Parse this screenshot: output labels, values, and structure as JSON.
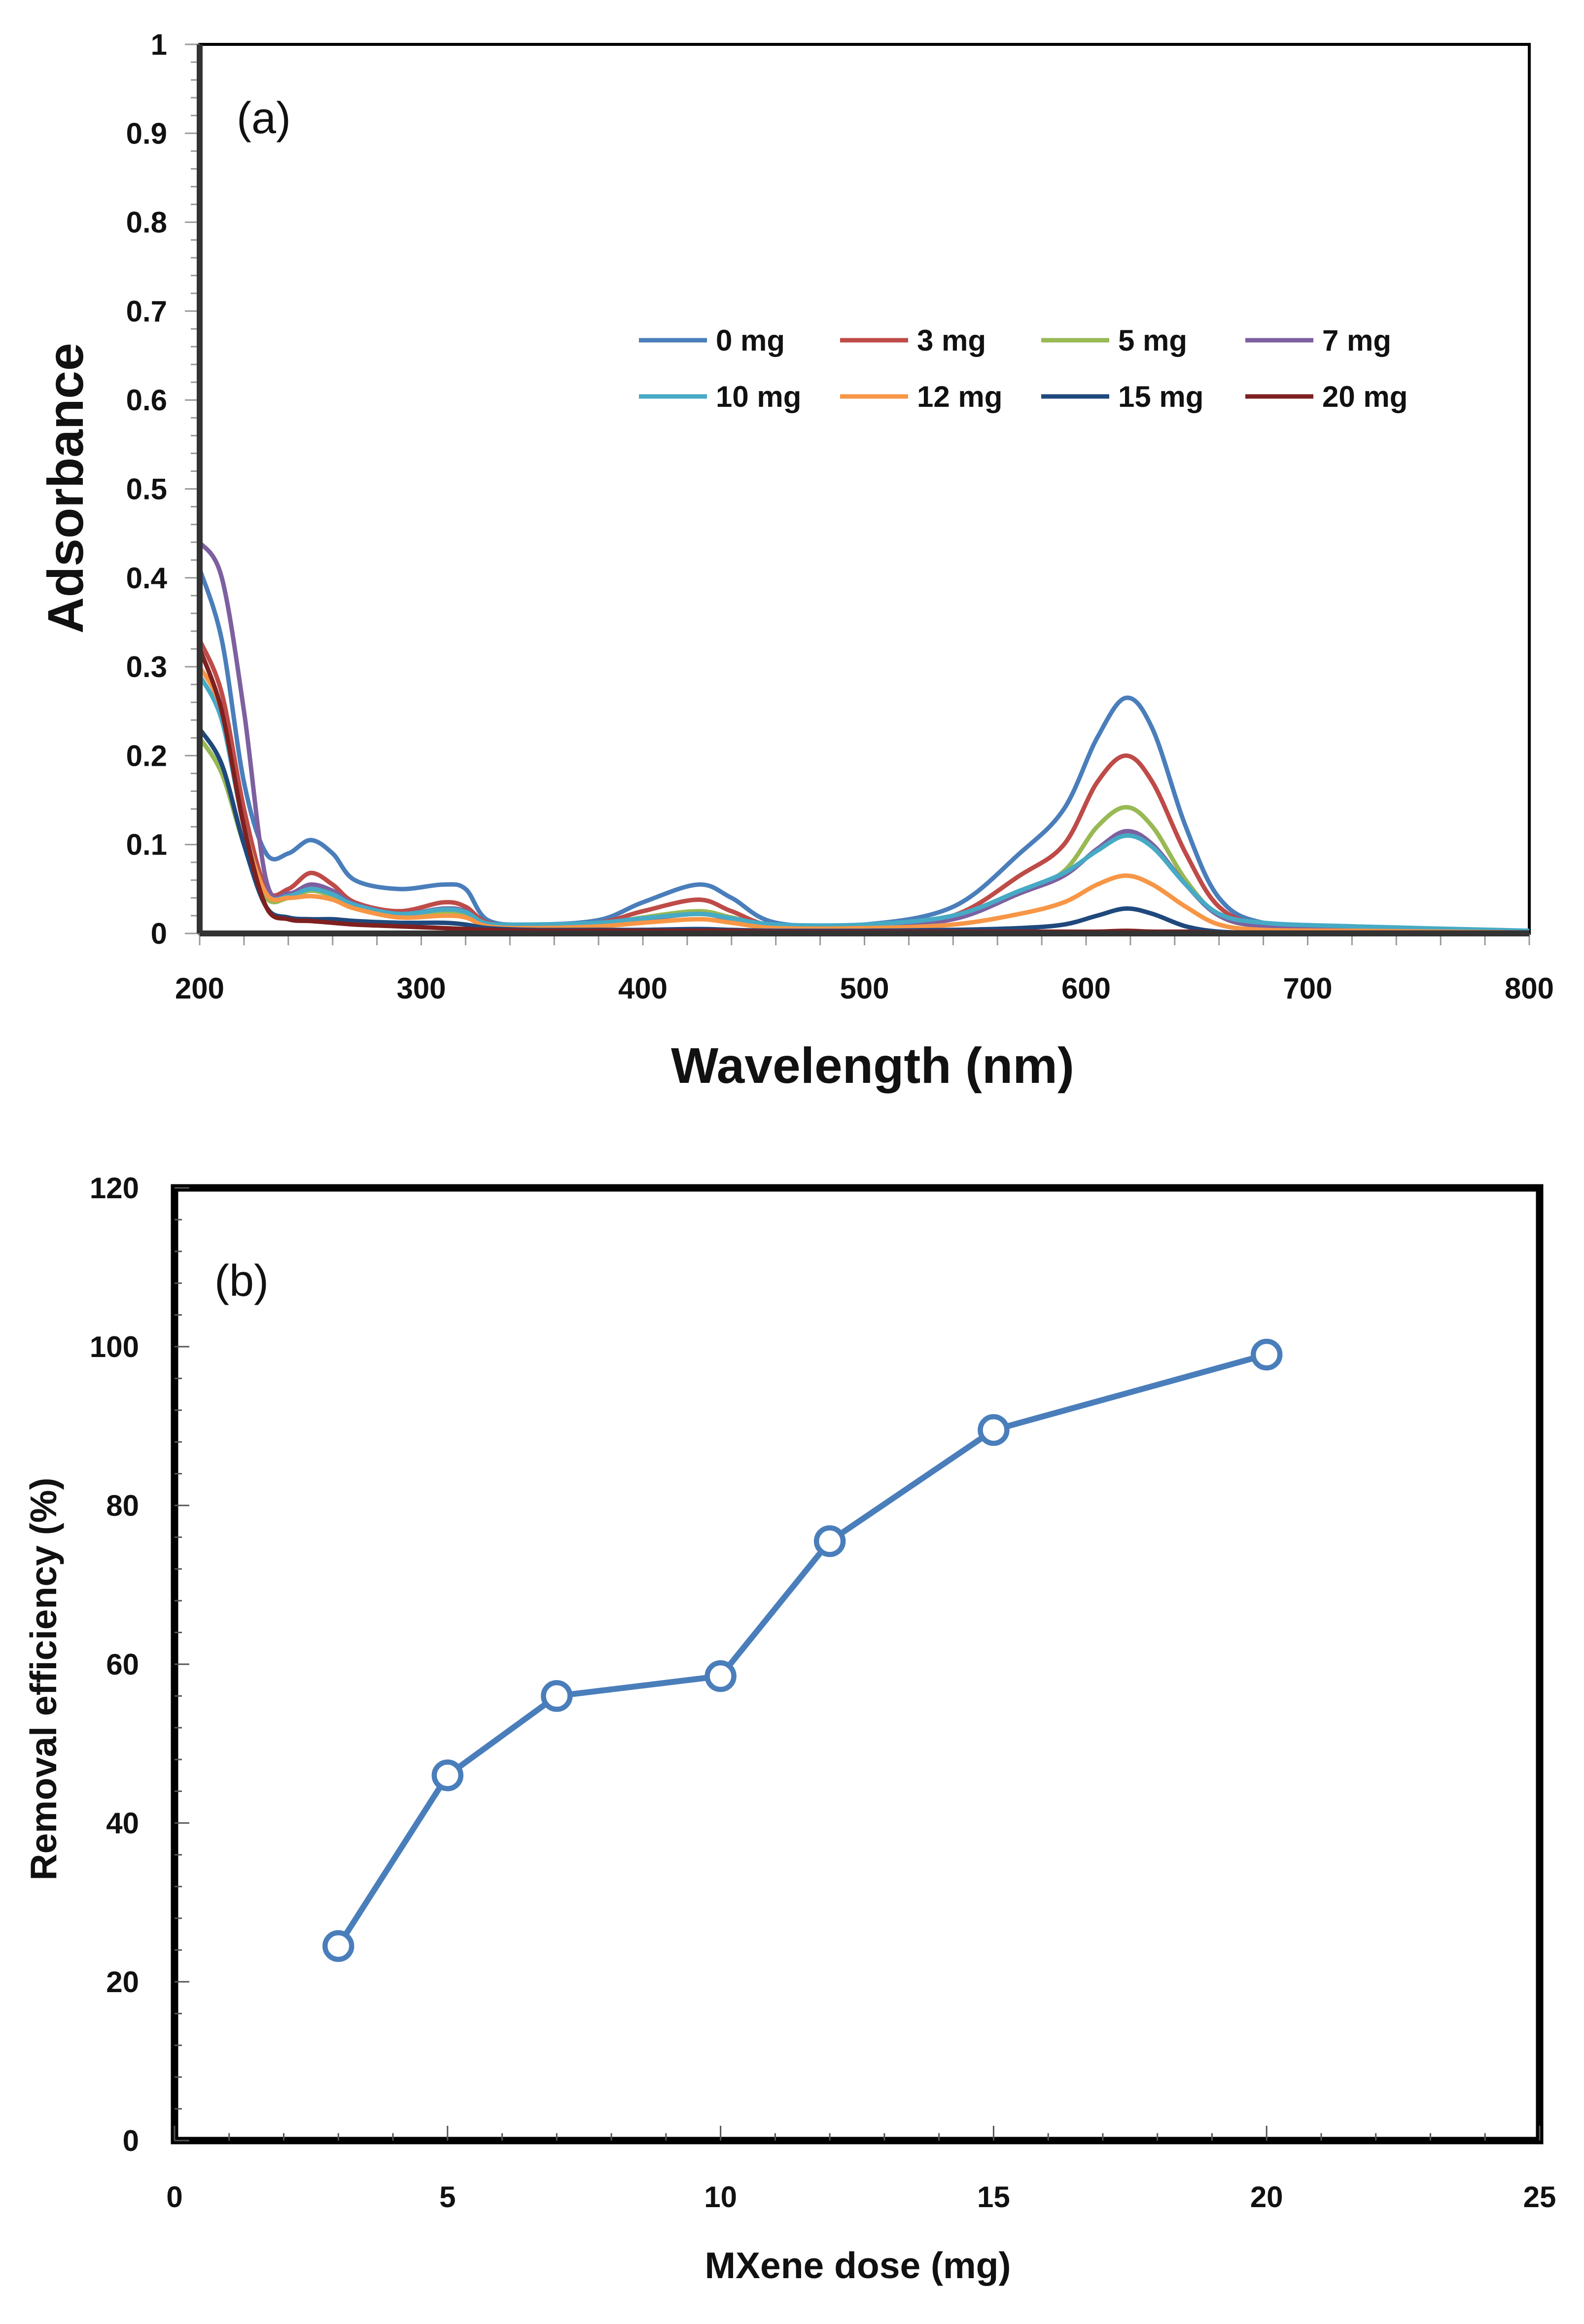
{
  "chart_data": [
    {
      "type": "line",
      "panel_label": "(a)",
      "xlabel": "Wavelength (nm)",
      "ylabel": "Adsorbance",
      "xlim": [
        200,
        800
      ],
      "ylim": [
        0,
        1
      ],
      "x_ticks": [
        "200",
        "300",
        "400",
        "500",
        "600",
        "700",
        "800"
      ],
      "y_ticks": [
        "0",
        "0.1",
        "0.2",
        "0.3",
        "0.4",
        "0.5",
        "0.6",
        "0.7",
        "0.8",
        "0.9",
        "1"
      ],
      "legend_position": "top-right (inside, 2 rows)",
      "x": [
        200,
        210,
        220,
        230,
        240,
        250,
        260,
        270,
        290,
        310,
        320,
        330,
        350,
        380,
        400,
        425,
        440,
        460,
        500,
        540,
        570,
        590,
        605,
        618,
        630,
        645,
        660,
        680,
        720,
        800
      ],
      "series": [
        {
          "name": "0 mg",
          "color": "#4a7ebb",
          "values": [
            0.41,
            0.33,
            0.17,
            0.09,
            0.09,
            0.105,
            0.09,
            0.06,
            0.05,
            0.055,
            0.05,
            0.015,
            0.01,
            0.015,
            0.035,
            0.055,
            0.04,
            0.012,
            0.01,
            0.03,
            0.09,
            0.14,
            0.22,
            0.265,
            0.23,
            0.12,
            0.04,
            0.012,
            0.008,
            0.002
          ]
        },
        {
          "name": "3 mg",
          "color": "#be4b48",
          "values": [
            0.33,
            0.27,
            0.14,
            0.05,
            0.05,
            0.068,
            0.055,
            0.035,
            0.025,
            0.035,
            0.03,
            0.012,
            0.008,
            0.012,
            0.025,
            0.038,
            0.025,
            0.008,
            0.008,
            0.02,
            0.065,
            0.1,
            0.17,
            0.2,
            0.17,
            0.09,
            0.03,
            0.01,
            0.006,
            0.002
          ]
        },
        {
          "name": "5 mg",
          "color": "#98b954",
          "values": [
            0.22,
            0.18,
            0.1,
            0.04,
            0.04,
            0.048,
            0.042,
            0.03,
            0.02,
            0.025,
            0.022,
            0.01,
            0.008,
            0.01,
            0.018,
            0.025,
            0.018,
            0.008,
            0.008,
            0.018,
            0.045,
            0.07,
            0.12,
            0.142,
            0.12,
            0.06,
            0.02,
            0.008,
            0.005,
            0.002
          ]
        },
        {
          "name": "7 mg",
          "color": "#7d60a0",
          "values": [
            0.44,
            0.4,
            0.25,
            0.06,
            0.045,
            0.055,
            0.048,
            0.033,
            0.022,
            0.028,
            0.025,
            0.01,
            0.008,
            0.01,
            0.016,
            0.022,
            0.016,
            0.008,
            0.008,
            0.016,
            0.045,
            0.065,
            0.095,
            0.115,
            0.1,
            0.055,
            0.02,
            0.008,
            0.005,
            0.002
          ]
        },
        {
          "name": "10 mg",
          "color": "#46aac5",
          "values": [
            0.29,
            0.24,
            0.12,
            0.045,
            0.042,
            0.05,
            0.044,
            0.032,
            0.022,
            0.027,
            0.024,
            0.011,
            0.01,
            0.012,
            0.017,
            0.022,
            0.017,
            0.01,
            0.01,
            0.02,
            0.048,
            0.068,
            0.093,
            0.11,
            0.097,
            0.055,
            0.022,
            0.012,
            0.008,
            0.003
          ]
        },
        {
          "name": "12 mg",
          "color": "#f79646",
          "values": [
            0.3,
            0.25,
            0.12,
            0.045,
            0.04,
            0.042,
            0.038,
            0.028,
            0.018,
            0.02,
            0.018,
            0.008,
            0.006,
            0.008,
            0.012,
            0.016,
            0.012,
            0.006,
            0.006,
            0.01,
            0.022,
            0.035,
            0.055,
            0.065,
            0.055,
            0.03,
            0.01,
            0.004,
            0.003,
            0.001
          ]
        },
        {
          "name": "15 mg",
          "color": "#1f497d",
          "values": [
            0.23,
            0.19,
            0.1,
            0.03,
            0.018,
            0.016,
            0.016,
            0.014,
            0.012,
            0.012,
            0.01,
            0.006,
            0.004,
            0.004,
            0.004,
            0.005,
            0.004,
            0.003,
            0.003,
            0.004,
            0.006,
            0.01,
            0.02,
            0.028,
            0.022,
            0.008,
            0.002,
            0.001,
            0.001,
            0.001
          ]
        },
        {
          "name": "20 mg",
          "color": "#7f2020",
          "values": [
            0.32,
            0.25,
            0.12,
            0.03,
            0.016,
            0.014,
            0.012,
            0.01,
            0.008,
            0.006,
            0.005,
            0.004,
            0.003,
            0.003,
            0.003,
            0.003,
            0.003,
            0.002,
            0.002,
            0.002,
            0.002,
            0.002,
            0.002,
            0.003,
            0.002,
            0.002,
            0.001,
            0.001,
            0.001,
            0.001
          ]
        }
      ]
    },
    {
      "type": "line",
      "panel_label": "(b)",
      "xlabel": "MXene dose (mg)",
      "ylabel": "Removal efficiency (%)",
      "xlim": [
        0,
        25
      ],
      "ylim": [
        0,
        120
      ],
      "x_ticks": [
        "0",
        "5",
        "10",
        "15",
        "20",
        "25"
      ],
      "y_ticks": [
        "0",
        "20",
        "40",
        "60",
        "80",
        "100",
        "120"
      ],
      "series": [
        {
          "name": "Removal efficiency",
          "color": "#4a7ebb",
          "x": [
            3,
            5,
            7,
            10,
            12,
            15,
            20
          ],
          "values": [
            24.5,
            46,
            56,
            58.5,
            75.5,
            89.5,
            99
          ]
        }
      ]
    }
  ]
}
